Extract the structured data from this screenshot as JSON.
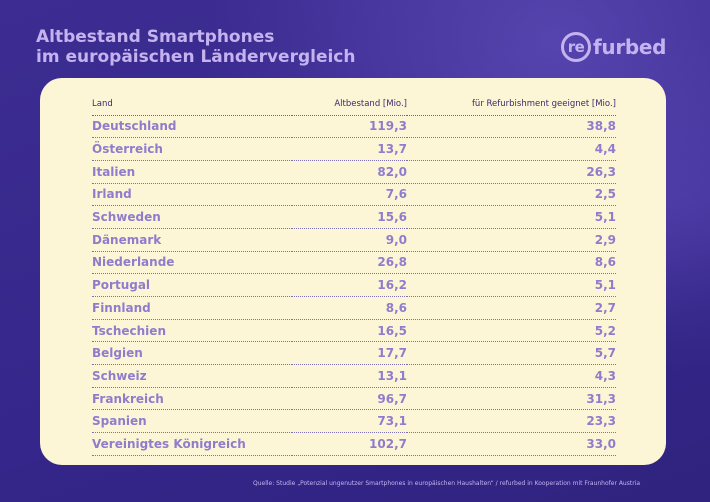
{
  "title": {
    "line1": "Altbestand Smartphones",
    "line2": "im europäischen Ländervergleich"
  },
  "logo": {
    "circle_text": "re",
    "rest_text": "furbed"
  },
  "colors": {
    "background": "#3a2a8c",
    "card": "#fdf6d6",
    "accent": "#8f7ccd",
    "title": "#c5b3f0"
  },
  "chart_data": {
    "type": "table",
    "columns": [
      "Land",
      "Altbestand [Mio.]",
      "für Refurbishment geeignet [Mio.]"
    ],
    "rows": [
      [
        "Deutschland",
        "119,3",
        "38,8"
      ],
      [
        "Österreich",
        "13,7",
        "4,4"
      ],
      [
        "Italien",
        "82,0",
        "26,3"
      ],
      [
        "Irland",
        "7,6",
        "2,5"
      ],
      [
        "Schweden",
        "15,6",
        "5,1"
      ],
      [
        "Dänemark",
        "9,0",
        "2,9"
      ],
      [
        "Niederlande",
        "26,8",
        "8,6"
      ],
      [
        "Portugal",
        "16,2",
        "5,1"
      ],
      [
        "Finnland",
        "8,6",
        "2,7"
      ],
      [
        "Tschechien",
        "16,5",
        "5,2"
      ],
      [
        "Belgien",
        "17,7",
        "5,7"
      ],
      [
        "Schweiz",
        "13,1",
        "4,3"
      ],
      [
        "Frankreich",
        "96,7",
        "31,3"
      ],
      [
        "Spanien",
        "73,1",
        "23,3"
      ],
      [
        "Vereinigtes Königreich",
        "102,7",
        "33,0"
      ]
    ]
  },
  "source": "Quelle: Studie „Potenzial ungenutzer Smartphones in europäischen Haushalten“ / refurbed in Kooperation mit Fraunhofer Austria"
}
